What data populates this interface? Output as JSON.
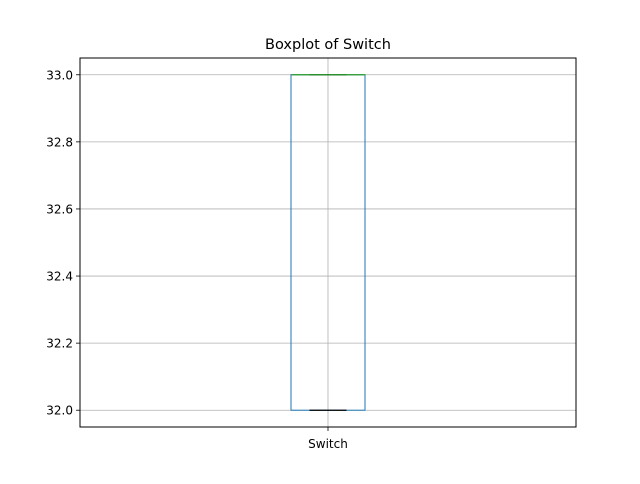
{
  "chart_data": {
    "type": "box",
    "title": "Boxplot of Switch",
    "xlabel": "",
    "ylabel": "",
    "categories": [
      "Switch"
    ],
    "boxes": [
      {
        "category": "Switch",
        "whisker_low": 32.0,
        "q1": 32.0,
        "median": 33.0,
        "q3": 33.0,
        "whisker_high": 33.0
      }
    ],
    "ylim": [
      31.95,
      33.05
    ],
    "yticks": [
      32.0,
      32.2,
      32.4,
      32.6,
      32.8,
      33.0
    ],
    "ytick_labels": [
      "32.0",
      "32.2",
      "32.4",
      "32.6",
      "32.8",
      "33.0"
    ],
    "grid": true,
    "colors": {
      "box": "#1f77b4",
      "median": "#2ca02c",
      "whisker": "#000000",
      "grid": "#b0b0b0",
      "axes": "#000000"
    }
  }
}
